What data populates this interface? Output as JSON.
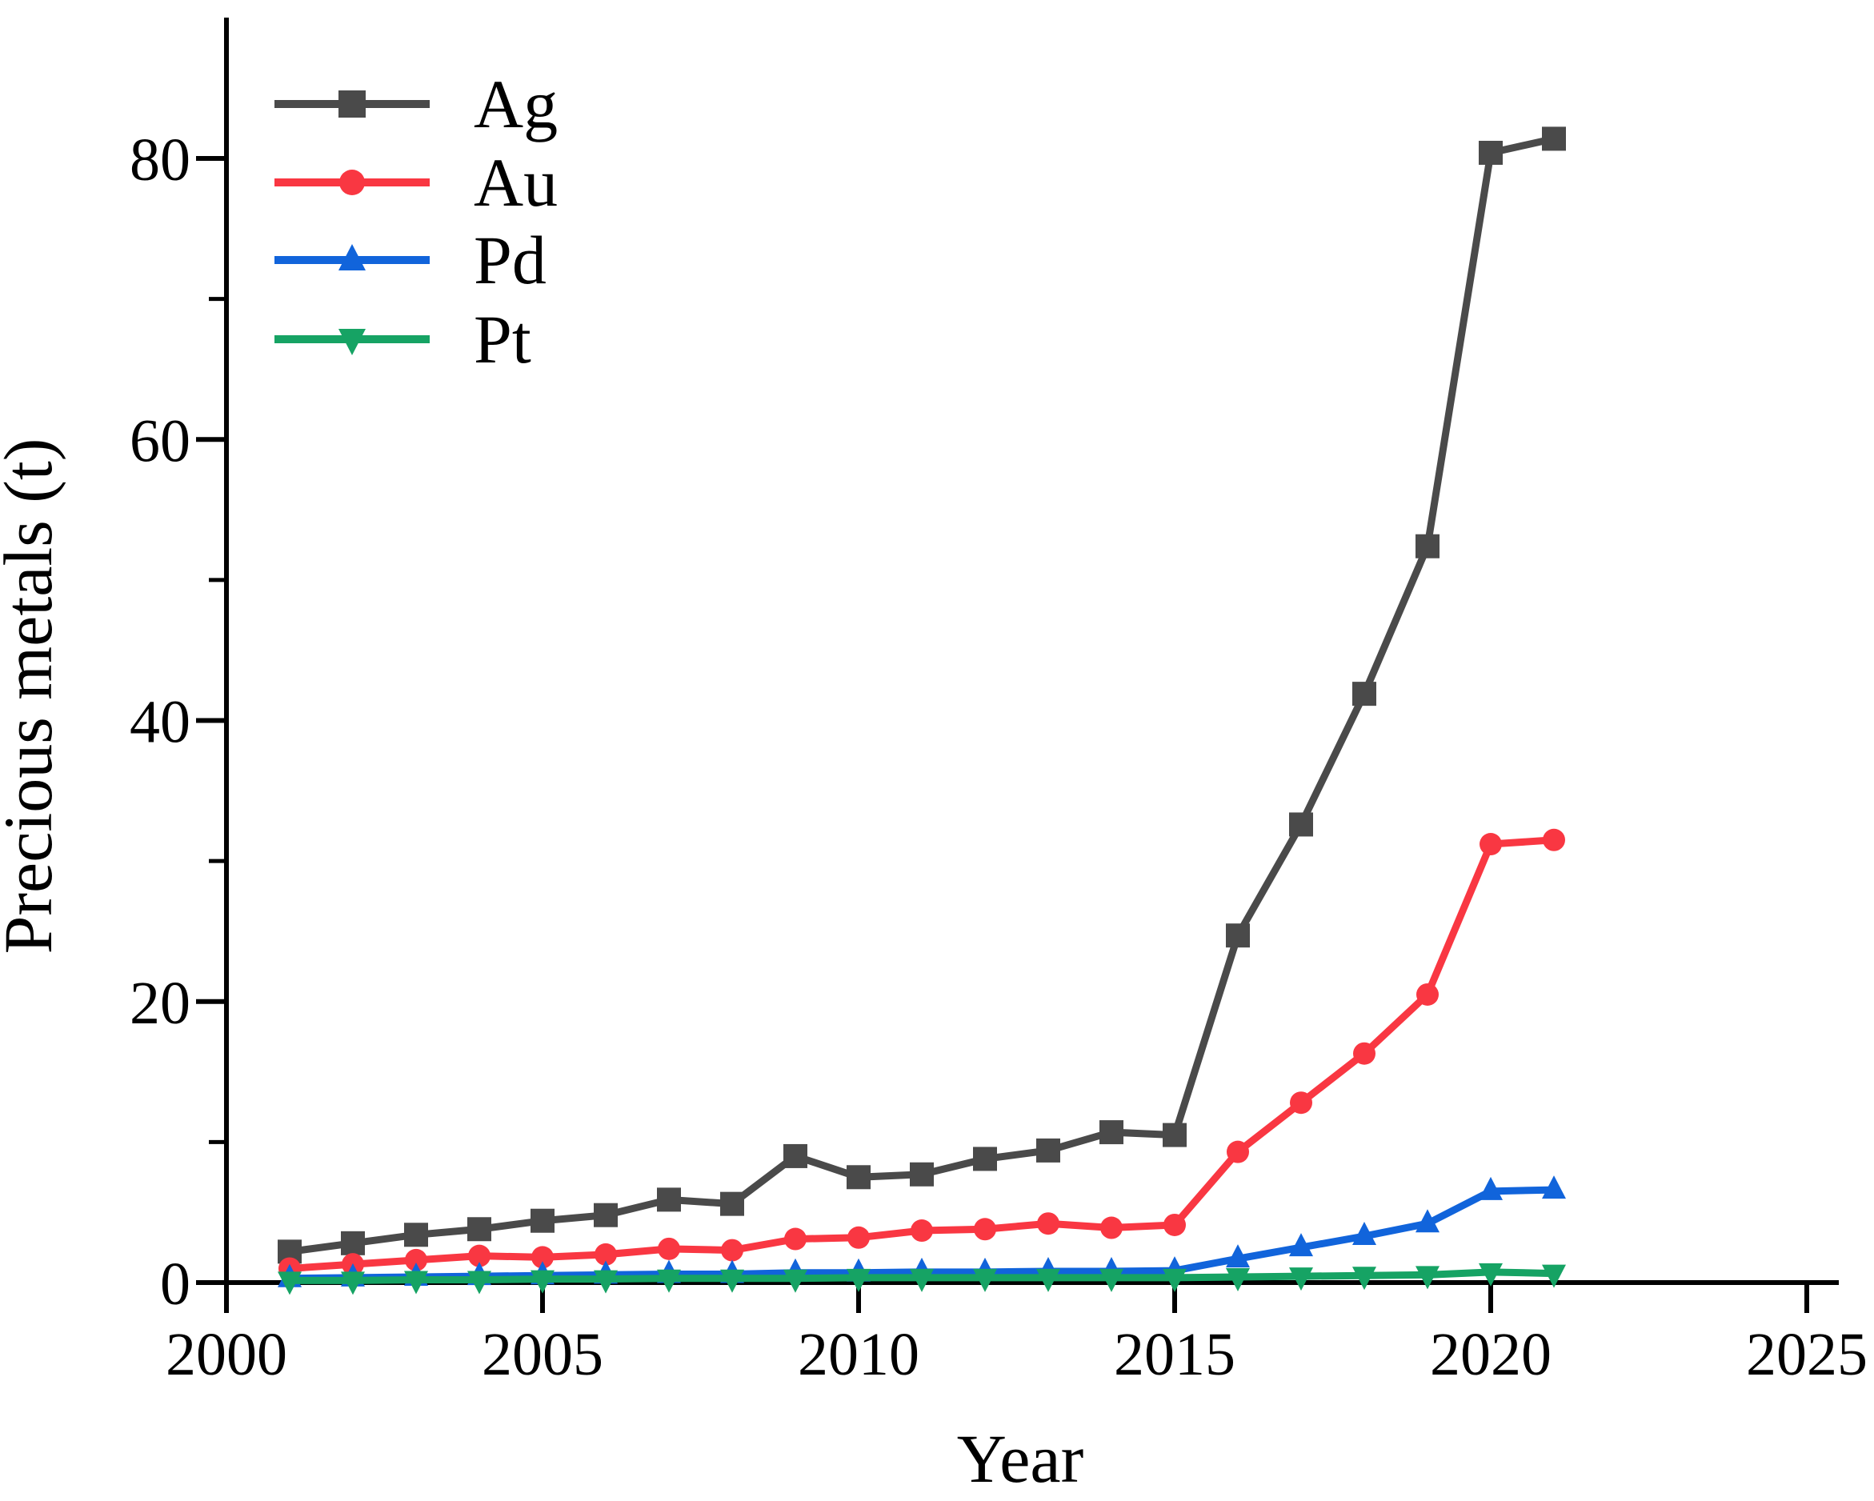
{
  "figure": {
    "background": "#ffffff",
    "axis_color": "#000000"
  },
  "chart_data": {
    "type": "line",
    "title": "",
    "xlabel": "Year",
    "ylabel": "Precious metals (t)",
    "xlim": [
      2000,
      2025.5
    ],
    "ylim": [
      0,
      90
    ],
    "x_ticks": [
      2000,
      2005,
      2010,
      2015,
      2020,
      2025
    ],
    "y_ticks_major": [
      0,
      20,
      40,
      60,
      80
    ],
    "y_ticks_minor": [
      10,
      30,
      50,
      70
    ],
    "grid": false,
    "legend_position": "top-left",
    "x": [
      2001,
      2002,
      2003,
      2004,
      2005,
      2006,
      2007,
      2008,
      2009,
      2010,
      2011,
      2012,
      2013,
      2014,
      2015,
      2016,
      2017,
      2018,
      2019,
      2020,
      2021
    ],
    "series": [
      {
        "name": "Ag",
        "color": "#4A4A4A",
        "marker": "square",
        "values": [
          2.2,
          2.8,
          3.4,
          3.8,
          4.4,
          4.8,
          5.9,
          5.6,
          9.0,
          7.5,
          7.7,
          8.8,
          9.4,
          10.7,
          10.5,
          24.7,
          32.6,
          41.9,
          52.4,
          80.4,
          81.4
        ]
      },
      {
        "name": "Au",
        "color": "#F93742",
        "marker": "circle",
        "values": [
          1.0,
          1.3,
          1.6,
          1.9,
          1.8,
          2.0,
          2.4,
          2.3,
          3.1,
          3.2,
          3.7,
          3.8,
          4.2,
          3.9,
          4.1,
          9.3,
          12.8,
          16.3,
          20.5,
          31.2,
          31.5
        ]
      },
      {
        "name": "Pd",
        "color": "#1164DB",
        "marker": "triangle-up",
        "values": [
          0.3,
          0.35,
          0.4,
          0.45,
          0.5,
          0.55,
          0.6,
          0.6,
          0.7,
          0.7,
          0.75,
          0.75,
          0.8,
          0.8,
          0.85,
          1.7,
          2.5,
          3.3,
          4.2,
          6.5,
          6.6
        ]
      },
      {
        "name": "Pt",
        "color": "#16A364",
        "marker": "triangle-down",
        "values": [
          0.15,
          0.15,
          0.2,
          0.2,
          0.25,
          0.25,
          0.3,
          0.3,
          0.3,
          0.35,
          0.35,
          0.35,
          0.35,
          0.35,
          0.35,
          0.4,
          0.45,
          0.5,
          0.55,
          0.75,
          0.65
        ]
      }
    ]
  }
}
